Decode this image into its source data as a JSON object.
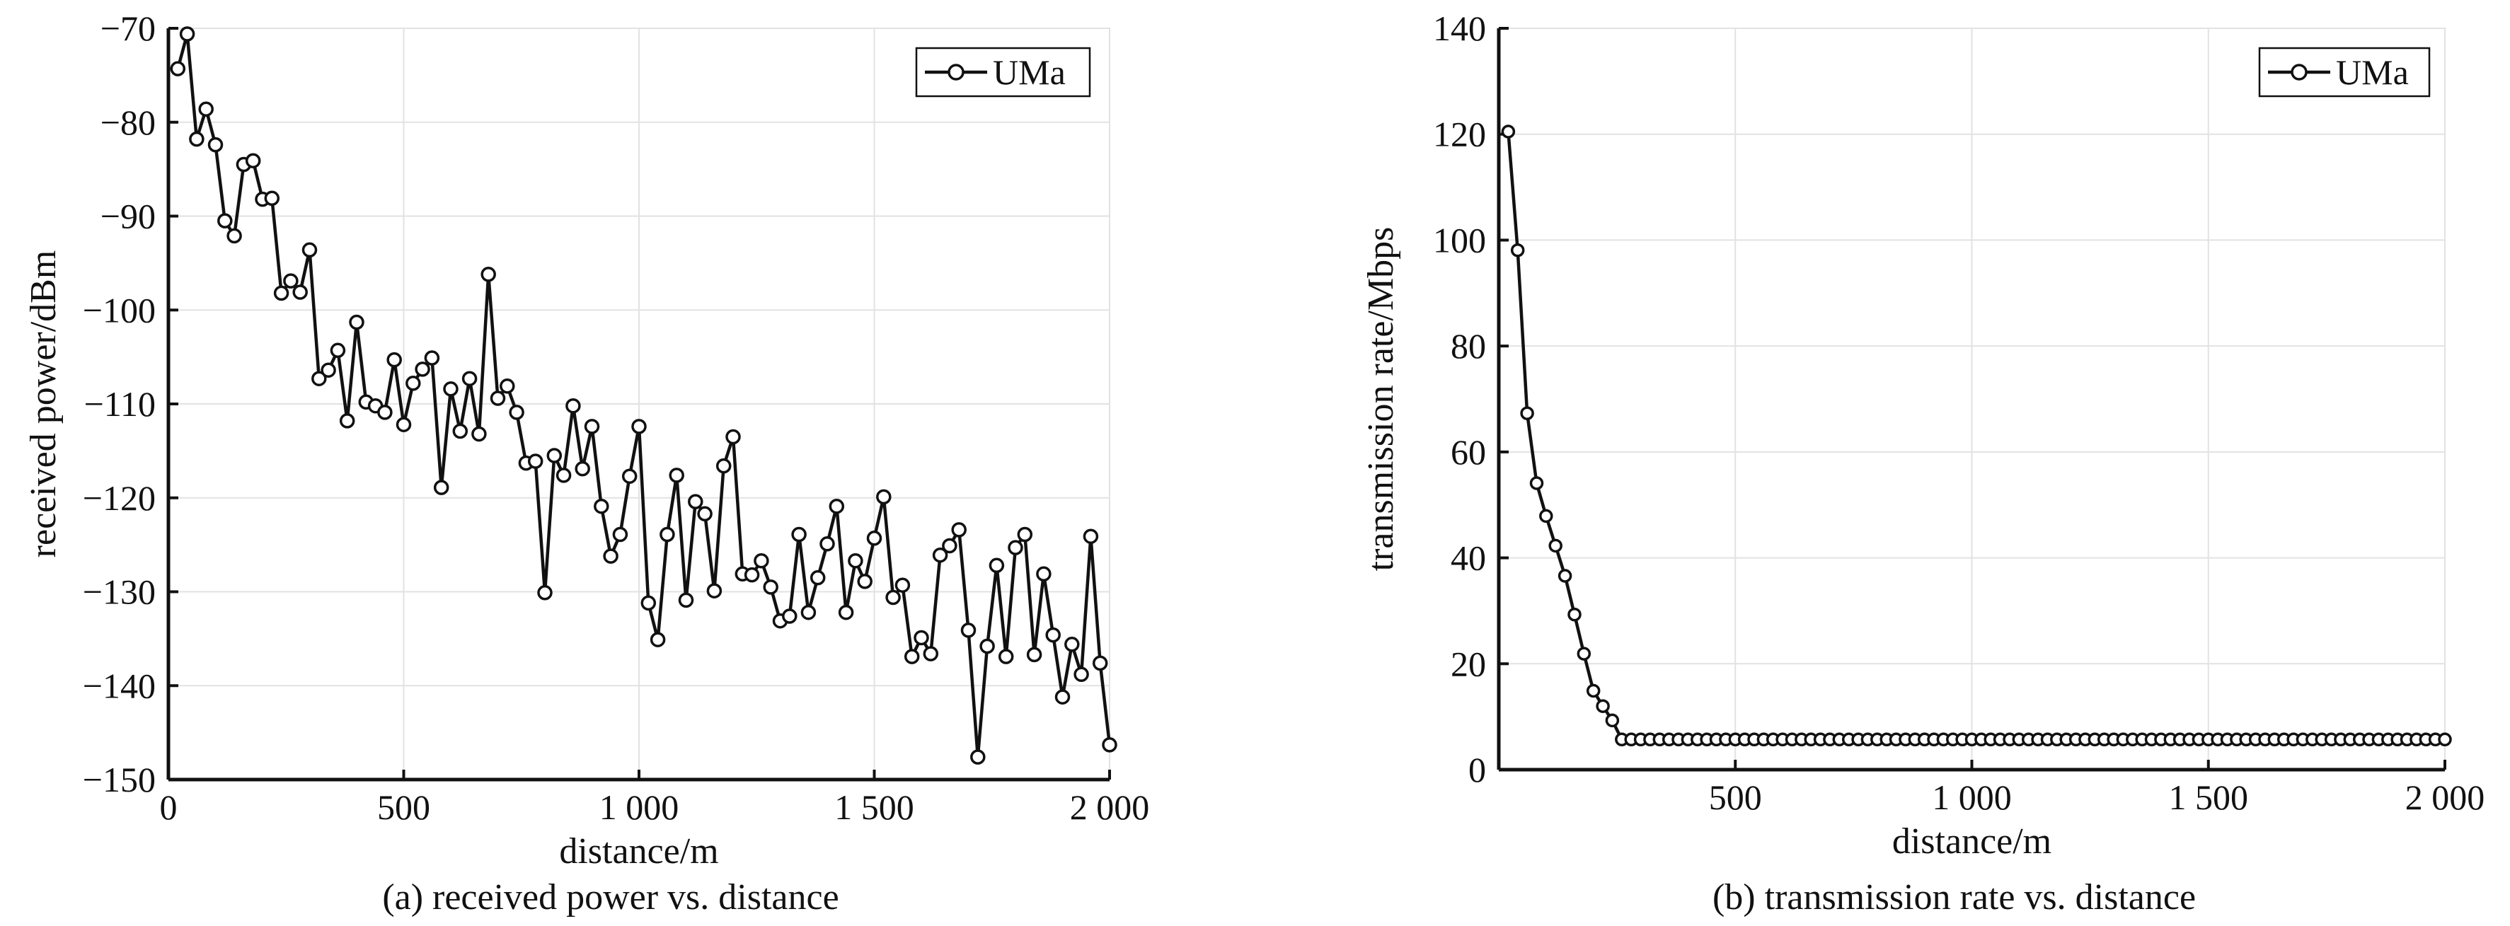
{
  "chart_data": [
    {
      "type": "line",
      "caption": "(a) received power vs. distance",
      "xlabel": "distance/m",
      "ylabel": "received power/dBm",
      "xlim": [
        0,
        2000
      ],
      "ylim": [
        -150,
        -70
      ],
      "xticks": [
        0,
        500,
        1000,
        1500,
        2000
      ],
      "xtick_labels": [
        "0",
        "500",
        "1 000",
        "1 500",
        "2 000"
      ],
      "yticks": [
        -150,
        -140,
        -130,
        -120,
        -110,
        -100,
        -90,
        -80,
        -70
      ],
      "ytick_labels": [
        "−150",
        "−140",
        "−130",
        "−120",
        "−110",
        "−100",
        "−90",
        "−80",
        "−70"
      ],
      "grid": true,
      "legend": "top-right",
      "series": [
        {
          "name": "UMa",
          "color": "#111111",
          "marker": "circle",
          "x": [
            20,
            40,
            60,
            80,
            100,
            120,
            140,
            160,
            180,
            200,
            220,
            240,
            260,
            280,
            300,
            320,
            340,
            360,
            380,
            400,
            420,
            440,
            460,
            480,
            500,
            520,
            540,
            560,
            580,
            600,
            620,
            640,
            660,
            680,
            700,
            720,
            740,
            760,
            780,
            800,
            820,
            840,
            860,
            880,
            900,
            920,
            940,
            960,
            980,
            1000,
            1020,
            1040,
            1060,
            1080,
            1100,
            1120,
            1140,
            1160,
            1180,
            1200,
            1220,
            1240,
            1260,
            1280,
            1300,
            1320,
            1340,
            1360,
            1380,
            1400,
            1420,
            1440,
            1460,
            1480,
            1500,
            1520,
            1540,
            1560,
            1580,
            1600,
            1620,
            1640,
            1660,
            1680,
            1700,
            1720,
            1740,
            1760,
            1780,
            1800,
            1820,
            1840,
            1860,
            1880,
            1900,
            1920,
            1940,
            1960,
            1980,
            2000
          ],
          "y": [
            -74.3,
            -70.6,
            -81.8,
            -78.6,
            -82.4,
            -90.5,
            -92.1,
            -84.5,
            -84.1,
            -88.2,
            -88.1,
            -98.2,
            -96.9,
            -98.1,
            -93.6,
            -107.3,
            -106.4,
            -104.3,
            -111.8,
            -101.3,
            -109.8,
            -110.2,
            -110.9,
            -105.3,
            -112.2,
            -107.8,
            -106.3,
            -105.1,
            -118.9,
            -108.4,
            -112.9,
            -107.3,
            -113.2,
            -96.2,
            -109.4,
            -108.1,
            -110.9,
            -116.3,
            -116.1,
            -130.1,
            -115.5,
            -117.6,
            -110.2,
            -116.9,
            -112.4,
            -120.9,
            -126.2,
            -123.9,
            -117.7,
            -112.4,
            -131.2,
            -135.1,
            -123.9,
            -117.6,
            -130.9,
            -120.4,
            -121.7,
            -129.9,
            -116.6,
            -113.5,
            -128.1,
            -128.2,
            -126.7,
            -129.5,
            -133.1,
            -132.6,
            -123.9,
            -132.2,
            -128.5,
            -124.9,
            -120.9,
            -132.2,
            -126.7,
            -128.9,
            -124.3,
            -119.9,
            -130.6,
            -129.3,
            -136.9,
            -134.9,
            -136.6,
            -126.1,
            -125.1,
            -123.4,
            -134.1,
            -147.6,
            -135.8,
            -127.2,
            -136.9,
            -125.3,
            -123.9,
            -136.7,
            -128.1,
            -134.6,
            -141.2,
            -135.6,
            -138.8,
            -124.1,
            -137.6,
            -146.3
          ]
        }
      ]
    },
    {
      "type": "line",
      "caption": "(b) transmission rate vs. distance",
      "xlabel": "distance/m",
      "ylabel": "transmission rate/Mbps",
      "xlim": [
        0,
        2000
      ],
      "ylim": [
        0,
        140
      ],
      "xticks": [
        500,
        1000,
        1500,
        2000
      ],
      "xtick_labels": [
        "500",
        "1 000",
        "1 500",
        "2 000"
      ],
      "yticks": [
        0,
        20,
        40,
        60,
        80,
        100,
        120,
        140
      ],
      "ytick_labels": [
        "0",
        "20",
        "40",
        "60",
        "80",
        "100",
        "120",
        "140"
      ],
      "grid": true,
      "legend": "top-right",
      "series": [
        {
          "name": "UMa",
          "color": "#111111",
          "marker": "circle",
          "x": [
            20,
            40,
            60,
            80,
            100,
            120,
            140,
            160,
            180,
            200,
            220,
            240,
            260,
            280,
            300,
            320,
            340,
            360,
            380,
            400,
            420,
            440,
            460,
            480,
            500,
            520,
            540,
            560,
            580,
            600,
            620,
            640,
            660,
            680,
            700,
            720,
            740,
            760,
            780,
            800,
            820,
            840,
            860,
            880,
            900,
            920,
            940,
            960,
            980,
            1000,
            1020,
            1040,
            1060,
            1080,
            1100,
            1120,
            1140,
            1160,
            1180,
            1200,
            1220,
            1240,
            1260,
            1280,
            1300,
            1320,
            1340,
            1360,
            1380,
            1400,
            1420,
            1440,
            1460,
            1480,
            1500,
            1520,
            1540,
            1560,
            1580,
            1600,
            1620,
            1640,
            1660,
            1680,
            1700,
            1720,
            1740,
            1760,
            1780,
            1800,
            1820,
            1840,
            1860,
            1880,
            1900,
            1920,
            1940,
            1960,
            1980,
            2000
          ],
          "y": [
            120.5,
            98.1,
            67.3,
            54.1,
            47.9,
            42.3,
            36.6,
            29.3,
            21.9,
            14.9,
            12.0,
            9.3,
            5.7,
            5.7,
            5.7,
            5.7,
            5.7,
            5.7,
            5.7,
            5.7,
            5.7,
            5.7,
            5.7,
            5.7,
            5.7,
            5.7,
            5.7,
            5.7,
            5.7,
            5.7,
            5.7,
            5.7,
            5.7,
            5.7,
            5.7,
            5.7,
            5.7,
            5.7,
            5.7,
            5.7,
            5.7,
            5.7,
            5.7,
            5.7,
            5.7,
            5.7,
            5.7,
            5.7,
            5.7,
            5.7,
            5.7,
            5.7,
            5.7,
            5.7,
            5.7,
            5.7,
            5.7,
            5.7,
            5.7,
            5.7,
            5.7,
            5.7,
            5.7,
            5.7,
            5.7,
            5.7,
            5.7,
            5.7,
            5.7,
            5.7,
            5.7,
            5.7,
            5.7,
            5.7,
            5.7,
            5.7,
            5.7,
            5.7,
            5.7,
            5.7,
            5.7,
            5.7,
            5.7,
            5.7,
            5.7,
            5.7,
            5.7,
            5.7,
            5.7,
            5.7,
            5.7,
            5.7,
            5.7,
            5.7,
            5.7,
            5.7,
            5.7,
            5.7,
            5.7,
            5.7
          ]
        }
      ]
    }
  ]
}
